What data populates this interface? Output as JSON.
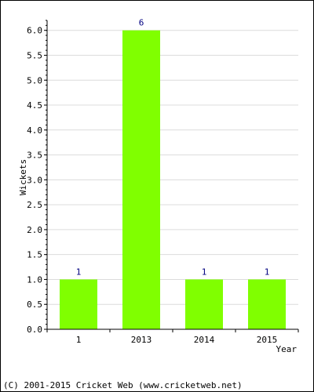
{
  "chart_data": {
    "type": "bar",
    "categories": [
      "1",
      "2013",
      "2014",
      "2015"
    ],
    "values": [
      1,
      6,
      1,
      1
    ],
    "data_labels": [
      "1",
      "6",
      "1",
      "1"
    ],
    "title": "",
    "xlabel": "Year",
    "ylabel": "Wickets",
    "ylim": [
      0,
      6.2
    ],
    "yticks": [
      "0.0",
      "0.5",
      "1.0",
      "1.5",
      "2.0",
      "2.5",
      "3.0",
      "3.5",
      "4.0",
      "4.5",
      "5.0",
      "5.5",
      "6.0"
    ],
    "grid": true,
    "legend": "none",
    "bar_color": "#80ff00",
    "grid_color": "#dcdcdc",
    "data_label_color": "#000080"
  },
  "footer": {
    "copyright": "(C) 2001-2015 Cricket Web (www.cricketweb.net)"
  }
}
